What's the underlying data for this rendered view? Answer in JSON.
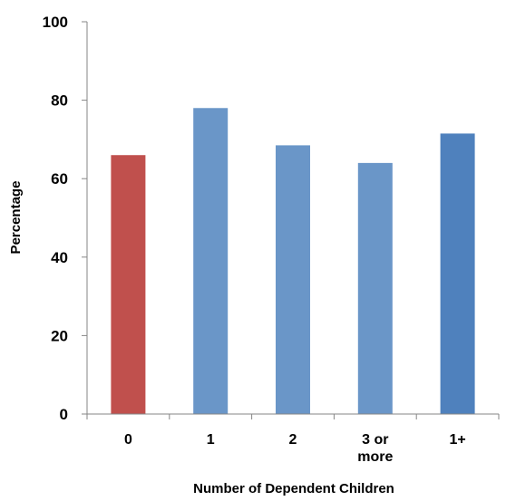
{
  "chart_data": {
    "type": "bar",
    "title": "",
    "xlabel": "Number of Dependent Children",
    "ylabel": "Percentage",
    "categories": [
      [
        "0"
      ],
      [
        "1"
      ],
      [
        "2"
      ],
      [
        "3 or",
        "more"
      ],
      [
        "1+"
      ]
    ],
    "values": [
      66,
      78,
      68.5,
      64,
      71.5
    ],
    "colors": [
      "#c0504d",
      "#6a96c8",
      "#6a96c8",
      "#6a96c8",
      "#4f81bd"
    ],
    "ylim": [
      0,
      100
    ],
    "yticks": [
      "0",
      "20",
      "40",
      "60",
      "80",
      "100"
    ],
    "grid": false,
    "legend": "none"
  }
}
